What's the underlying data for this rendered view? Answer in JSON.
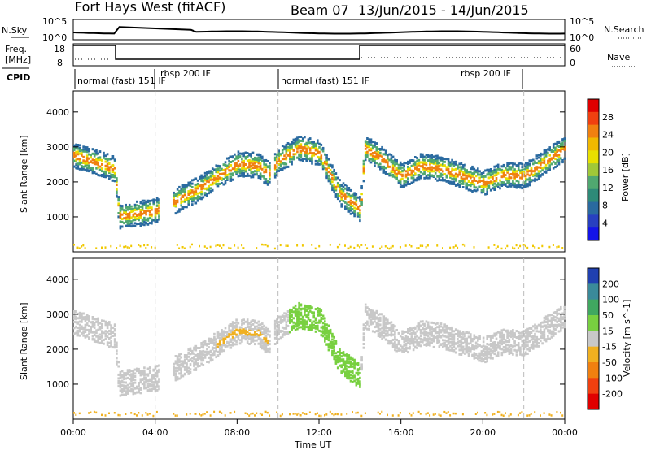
{
  "header": {
    "station": "Fort Hays West (fitACF)",
    "beam": "Beam 07",
    "date_range": "13/Jun/2015 - 14/Jun/2015"
  },
  "noise_panel": {
    "left_label": "N.Sky",
    "right_label": "N.Search",
    "left_ticks": [
      "10^5",
      "10^0"
    ],
    "right_ticks": [
      "10^5",
      "10^0"
    ]
  },
  "freq_panel": {
    "left_label_1": "Freq.",
    "left_label_2": "[MHz]",
    "right_label": "Nave",
    "left_ticks": [
      "18",
      "8"
    ],
    "right_ticks": [
      "60",
      "0"
    ]
  },
  "cpid": {
    "label": "CPID",
    "segments": [
      {
        "text": "normal (fast) 151 IF",
        "start": 0.0,
        "end": 4.0
      },
      {
        "text": "rbsp 200 IF",
        "start": 4.0,
        "end": 10.0
      },
      {
        "text": "normal (fast) 151 IF",
        "start": 10.0,
        "end": 14.0
      },
      {
        "text": "rbsp 200 IF",
        "start": 14.0,
        "end": 22.0
      }
    ]
  },
  "x_axis": {
    "label": "Time UT",
    "ticks": [
      "00:00",
      "04:00",
      "08:00",
      "12:00",
      "16:00",
      "20:00",
      "00:00"
    ]
  },
  "chart_data": [
    {
      "type": "heatmap",
      "name": "power",
      "ylabel": "Slant Range [km]",
      "xlim_hours": [
        0,
        24
      ],
      "ylim_km": [
        0,
        4600
      ],
      "yticks": [
        1000,
        2000,
        3000,
        4000
      ],
      "colorbar_label": "Power [dB]",
      "colorbar_ticks": [
        "28",
        "24",
        "20",
        "16",
        "12",
        "8",
        "4"
      ],
      "colorbar_colors": [
        "#e00000",
        "#f04010",
        "#f08010",
        "#f0b800",
        "#e8e000",
        "#a0c838",
        "#50a870",
        "#2e8a78",
        "#2a6aa0",
        "#2840c0",
        "#1414e8"
      ],
      "echo_ridge": [
        [
          0,
          2800
        ],
        [
          1,
          2600
        ],
        [
          2,
          2400
        ],
        [
          2.2,
          1050
        ],
        [
          4,
          1200
        ],
        [
          6,
          1800
        ],
        [
          8,
          2550
        ],
        [
          9,
          2500
        ],
        [
          9.5,
          2250
        ],
        [
          10,
          2650
        ],
        [
          11,
          3000
        ],
        [
          12,
          2850
        ],
        [
          13,
          1700
        ],
        [
          14,
          1250
        ],
        [
          14.2,
          3000
        ],
        [
          15,
          2700
        ],
        [
          16,
          2200
        ],
        [
          17,
          2500
        ],
        [
          18,
          2400
        ],
        [
          19,
          2200
        ],
        [
          20,
          2000
        ],
        [
          21,
          2250
        ],
        [
          22,
          2200
        ],
        [
          23,
          2600
        ],
        [
          24,
          3000
        ]
      ]
    },
    {
      "type": "heatmap",
      "name": "velocity",
      "ylabel": "Slant Range [km]",
      "xlim_hours": [
        0,
        24
      ],
      "ylim_km": [
        0,
        4600
      ],
      "yticks": [
        1000,
        2000,
        3000,
        4000
      ],
      "colorbar_label": "Velocity [m s^-1]",
      "colorbar_ticks": [
        "200",
        "100",
        "50",
        "15",
        "-15",
        "-50",
        "-100",
        "-200"
      ],
      "colorbar_colors": [
        "#2040b0",
        "#3a8a9a",
        "#40a860",
        "#78d040",
        "#c8c8c8",
        "#f0b020",
        "#f08010",
        "#f04010",
        "#e00000"
      ]
    }
  ]
}
